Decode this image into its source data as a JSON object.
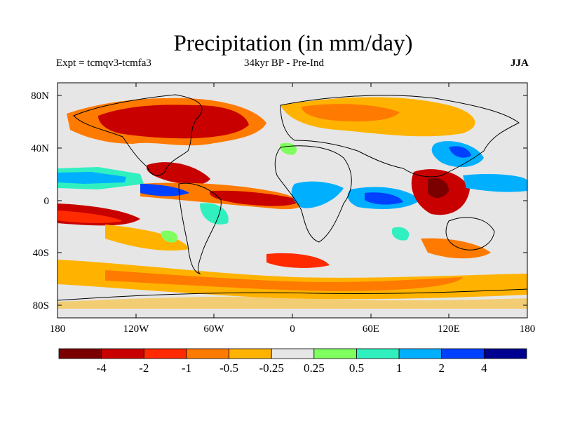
{
  "title": "Precipitation (in mm/day)",
  "subtitle_left": "Expt = tcmqv3-tcmfa3",
  "subtitle_center": "34kyr BP - Pre-Ind",
  "subtitle_right": "JJA",
  "lat_ticks": [
    "80N",
    "40N",
    "0",
    "40S",
    "80S"
  ],
  "lon_ticks": [
    "180",
    "120W",
    "60W",
    "0",
    "60E",
    "120E",
    "180"
  ],
  "colorbar": {
    "colors": [
      "#7a0000",
      "#c80000",
      "#ff2a00",
      "#ff7a00",
      "#ffb300",
      "#e6e6e6",
      "#80ff60",
      "#30f0c0",
      "#00b0ff",
      "#0040ff",
      "#000090"
    ],
    "labels": [
      "-4",
      "-2",
      "-1",
      "-0.5",
      "-0.25",
      "0.25",
      "0.5",
      "1",
      "2",
      "4"
    ]
  }
}
